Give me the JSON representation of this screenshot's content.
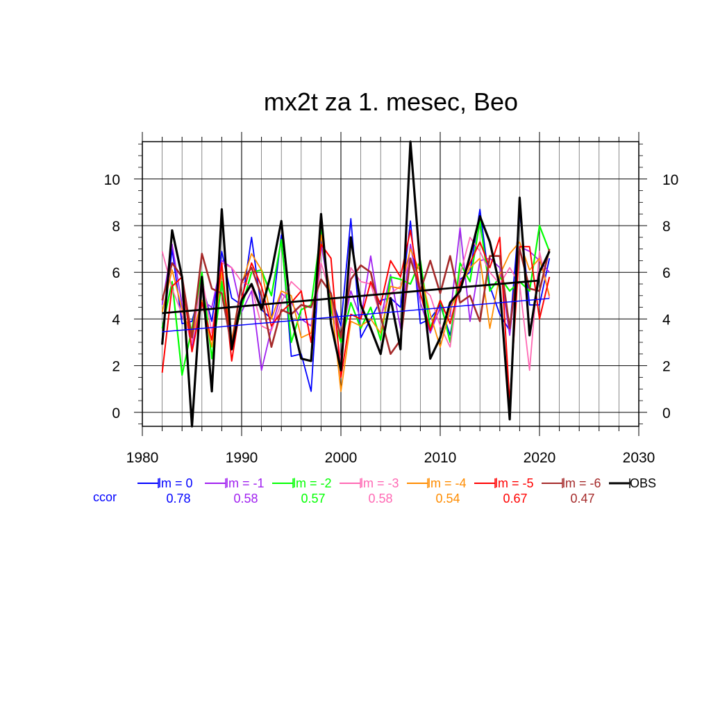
{
  "chart_data": {
    "type": "line",
    "title": "mx2t za 1. mesec, Beo",
    "xlim": [
      1980,
      2030
    ],
    "ylim": [
      -0.6,
      11.6
    ],
    "x_ticks": [
      "1980",
      "1990",
      "2000",
      "2010",
      "2020",
      "2030"
    ],
    "y_ticks": [
      "0",
      "2",
      "4",
      "6",
      "8",
      "10"
    ],
    "grid": true,
    "legend_position": "bottom",
    "ccor_label": "ccor",
    "x": [
      1982,
      1983,
      1984,
      1985,
      1986,
      1987,
      1988,
      1989,
      1990,
      1991,
      1992,
      1993,
      1994,
      1995,
      1996,
      1997,
      1998,
      1999,
      2000,
      2001,
      2002,
      2003,
      2004,
      2005,
      2006,
      2007,
      2008,
      2009,
      2010,
      2011,
      2012,
      2013,
      2014,
      2015,
      2016,
      2017,
      2018,
      2019,
      2020,
      2021
    ],
    "series": [
      {
        "name": "lm = 0",
        "ccor": "0.78",
        "color": "#0000ff",
        "width": 1.8,
        "values": [
          3.1,
          7.0,
          3.8,
          3.9,
          5.5,
          3.9,
          6.9,
          4.9,
          4.6,
          7.5,
          4.4,
          4.0,
          7.6,
          2.4,
          2.5,
          0.9,
          7.5,
          5.0,
          3.7,
          8.3,
          3.2,
          4.0,
          4.8,
          4.9,
          4.5,
          8.2,
          3.8,
          4.0,
          4.6,
          3.3,
          5.7,
          6.0,
          8.7,
          5.4,
          4.2,
          3.5,
          8.6,
          4.6,
          4.6,
          6.6
        ]
      },
      {
        "name": "lm = -1",
        "ccor": "0.58",
        "color": "#a020f0",
        "width": 1.8,
        "values": [
          4.6,
          7.2,
          4.6,
          2.8,
          4.8,
          4.5,
          6.5,
          6.2,
          4.3,
          5.2,
          1.8,
          3.6,
          5.1,
          4.7,
          4.0,
          3.7,
          7.2,
          4.8,
          3.2,
          5.2,
          4.0,
          6.7,
          4.0,
          5.9,
          3.6,
          7.2,
          4.7,
          3.4,
          4.5,
          4.1,
          7.9,
          3.9,
          6.5,
          6.6,
          6.2,
          3.3,
          7.1,
          6.9,
          6.5,
          6.0
        ]
      },
      {
        "name": "lm = -2",
        "ccor": "0.57",
        "color": "#00ff00",
        "width": 2.2,
        "values": [
          3.6,
          5.6,
          1.6,
          3.6,
          6.0,
          2.3,
          5.6,
          2.8,
          4.5,
          6.0,
          6.1,
          5.0,
          7.4,
          3.0,
          4.4,
          4.6,
          7.8,
          4.4,
          3.0,
          4.7,
          3.6,
          4.5,
          3.1,
          5.8,
          5.7,
          5.5,
          6.5,
          3.6,
          4.8,
          3.0,
          6.4,
          5.6,
          8.2,
          5.2,
          5.8,
          5.2,
          5.6,
          5.2,
          8.0,
          6.9
        ]
      },
      {
        "name": "lm = -3",
        "ccor": "0.58",
        "color": "#ff69b4",
        "width": 1.8,
        "values": [
          6.9,
          5.3,
          4.2,
          3.0,
          5.8,
          3.4,
          6.4,
          6.2,
          5.6,
          5.4,
          3.7,
          3.5,
          4.7,
          5.6,
          5.2,
          3.0,
          6.4,
          5.0,
          2.2,
          6.2,
          5.6,
          5.5,
          4.1,
          5.1,
          5.4,
          6.6,
          5.4,
          5.0,
          3.7,
          2.8,
          5.9,
          7.5,
          6.9,
          6.0,
          5.5,
          6.2,
          5.5,
          1.8,
          6.9,
          4.9
        ]
      },
      {
        "name": "lm = -4",
        "ccor": "0.54",
        "color": "#ff8c00",
        "width": 1.8,
        "values": [
          4.3,
          6.1,
          4.4,
          3.2,
          4.8,
          2.8,
          6.0,
          3.1,
          5.5,
          6.8,
          6.1,
          4.0,
          5.2,
          5.0,
          3.2,
          3.4,
          7.6,
          4.9,
          0.9,
          3.9,
          3.7,
          4.0,
          3.4,
          5.4,
          5.3,
          7.0,
          6.0,
          4.2,
          2.8,
          4.4,
          5.4,
          6.2,
          6.6,
          3.6,
          5.9,
          6.8,
          7.3,
          6.1,
          6.6,
          5.0
        ]
      },
      {
        "name": "lm = -5",
        "ccor": "0.67",
        "color": "#ff0000",
        "width": 2.0,
        "values": [
          1.7,
          5.4,
          5.8,
          2.6,
          4.7,
          3.1,
          6.4,
          2.2,
          4.9,
          6.4,
          5.4,
          3.7,
          4.3,
          4.7,
          5.2,
          3.0,
          7.2,
          6.6,
          1.5,
          4.2,
          4.0,
          5.6,
          4.6,
          6.5,
          5.8,
          7.8,
          5.1,
          3.5,
          4.8,
          3.8,
          5.5,
          6.4,
          7.3,
          6.2,
          7.5,
          0.4,
          7.1,
          7.1,
          4.0,
          5.8
        ]
      },
      {
        "name": "lm = -6",
        "ccor": "0.47",
        "color": "#a52a2a",
        "width": 2.6,
        "values": [
          4.8,
          6.4,
          5.8,
          3.2,
          6.8,
          5.3,
          5.1,
          2.8,
          5.6,
          6.2,
          5.0,
          2.8,
          4.4,
          4.2,
          4.6,
          4.5,
          5.7,
          5.1,
          3.2,
          5.7,
          6.3,
          6.0,
          4.1,
          2.5,
          3.1,
          6.6,
          5.2,
          6.5,
          5.1,
          6.7,
          4.7,
          5.0,
          3.9,
          6.7,
          6.7,
          3.6,
          7.0,
          5.3,
          5.2,
          7.0
        ]
      },
      {
        "name": "OBS",
        "ccor": "",
        "color": "#000000",
        "width": 3.2,
        "values": [
          2.9,
          7.8,
          5.8,
          -0.6,
          5.8,
          0.9,
          8.7,
          2.7,
          4.8,
          5.5,
          4.4,
          6.0,
          8.2,
          4.1,
          2.3,
          2.2,
          8.5,
          3.8,
          1.8,
          7.5,
          4.6,
          3.6,
          2.5,
          4.9,
          2.7,
          11.6,
          6.2,
          2.3,
          3.2,
          4.7,
          5.2,
          6.7,
          8.4,
          7.3,
          5.4,
          -0.3,
          9.2,
          3.3,
          6.0,
          6.9
        ]
      }
    ],
    "trends": [
      {
        "name": "lm = 0 trend",
        "color": "#0000ff",
        "width": 1.5,
        "x": [
          1982,
          2021
        ],
        "y": [
          3.45,
          4.88
        ]
      },
      {
        "name": "OBS trend",
        "color": "#000000",
        "width": 2.8,
        "x": [
          1982,
          2020
        ],
        "y": [
          4.25,
          5.65
        ]
      }
    ]
  }
}
